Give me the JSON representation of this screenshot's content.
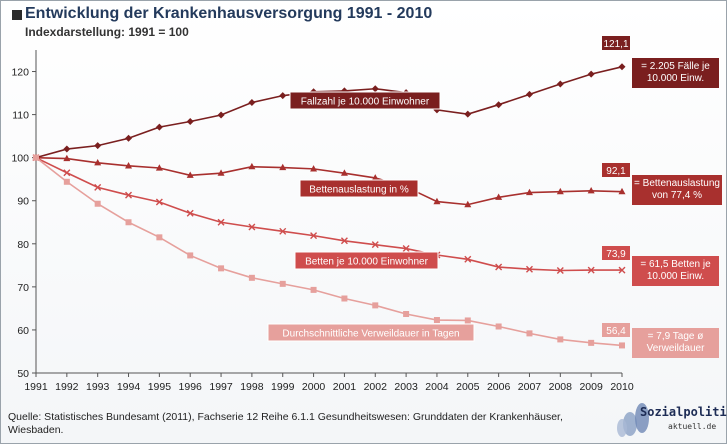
{
  "header": {
    "title": "Entwicklung der Krankenhausversorgung 1991 - 2010",
    "subtitle": "Indexdarstellung: 1991 = 100"
  },
  "source": "Quelle: Statistisches Bundesamt (2011), Fachserie 12 Reihe 6.1.1 Gesundheitswesen: Grunddaten der Krankenhäuser, Wiesbaden.",
  "logo": {
    "main": "Sozialpolitik-",
    "sub": "aktuell.de"
  },
  "chart_data": {
    "type": "line",
    "title": "Entwicklung der Krankenhausversorgung 1991 - 2010",
    "subtitle": "Indexdarstellung: 1991 = 100",
    "x": [
      "1991",
      "1992",
      "1993",
      "1994",
      "1995",
      "1996",
      "1997",
      "1998",
      "1999",
      "2000",
      "2001",
      "2002",
      "2003",
      "2004",
      "2005",
      "2006",
      "2007",
      "2008",
      "2009",
      "2010"
    ],
    "ylim": [
      50,
      125
    ],
    "yticks": [
      50,
      60,
      70,
      80,
      90,
      100,
      110,
      120
    ],
    "grid": false,
    "series": [
      {
        "name": "Fallzahl je 10.000 Einwohner",
        "color": "#7a1f1f",
        "marker": "diamond",
        "values": [
          100,
          102.0,
          102.8,
          104.5,
          107.1,
          108.4,
          109.9,
          112.8,
          114.4,
          115.3,
          115.5,
          116.0,
          115.1,
          111.1,
          110.1,
          112.3,
          114.7,
          117.1,
          119.4,
          121.1
        ],
        "end_label": "121,1",
        "note": "= 2.205 Fälle je 10.000 Einw."
      },
      {
        "name": "Bettenauslastung in %",
        "color": "#a8302e",
        "marker": "triangle",
        "values": [
          100,
          99.8,
          98.8,
          98.1,
          97.6,
          95.9,
          96.4,
          97.9,
          97.7,
          97.4,
          96.4,
          95.3,
          93.2,
          89.8,
          89.1,
          90.8,
          91.9,
          92.1,
          92.3,
          92.1
        ],
        "end_label": "92,1",
        "note": "= Bettenauslastung von 77,4 %"
      },
      {
        "name": "Betten je 10.000 Einwohner",
        "color": "#cf4d4d",
        "marker": "x",
        "values": [
          100,
          96.5,
          93.1,
          91.3,
          89.7,
          87.1,
          85.0,
          83.9,
          82.9,
          81.9,
          80.7,
          79.8,
          78.9,
          77.4,
          76.4,
          74.6,
          74.1,
          73.8,
          73.9,
          73.9
        ],
        "end_label": "73,9",
        "note": "= 61,5 Betten je 10.000 Einw."
      },
      {
        "name": "Durchschnittliche Verweildauer in Tagen",
        "color": "#e6a09c",
        "marker": "square",
        "values": [
          100,
          94.4,
          89.3,
          85.0,
          81.5,
          77.3,
          74.3,
          72.1,
          70.7,
          69.3,
          67.3,
          65.7,
          63.7,
          62.3,
          62.2,
          60.8,
          59.2,
          57.8,
          57.0,
          56.4
        ],
        "end_label": "56,4",
        "note": "= 7,9 Tage ø Verweildauer"
      }
    ]
  }
}
